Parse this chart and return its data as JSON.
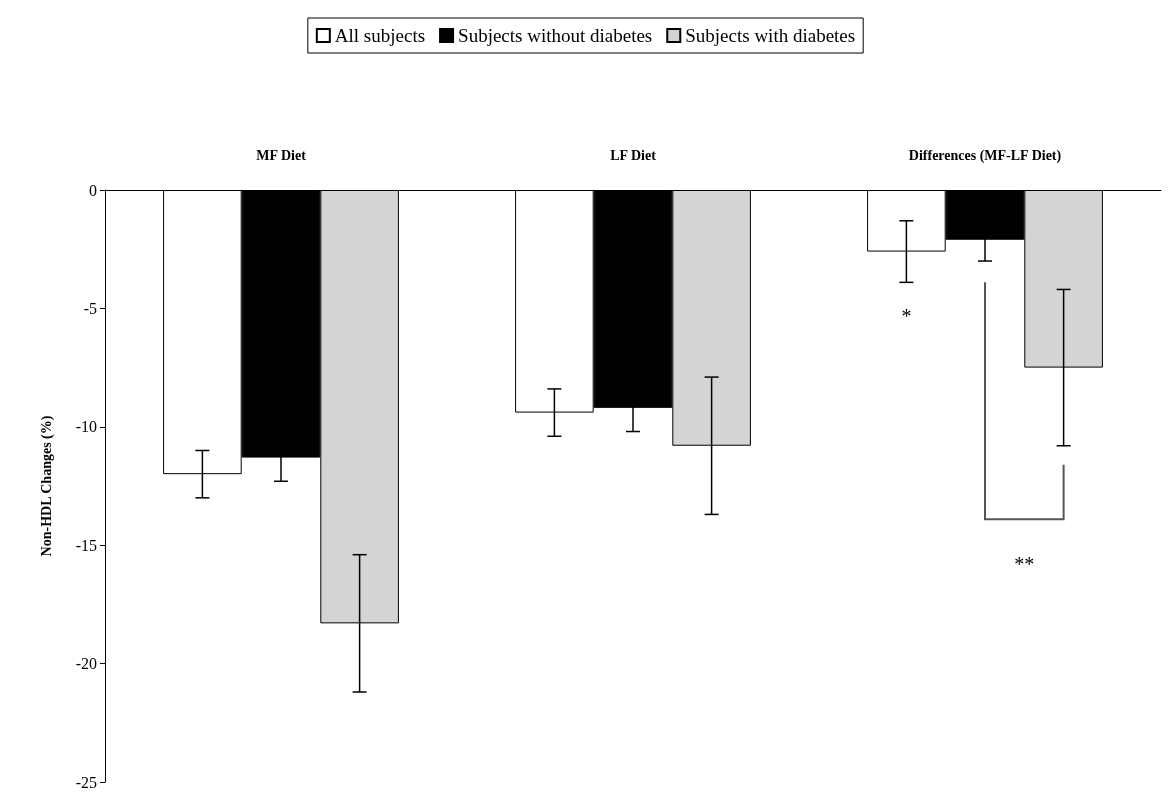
{
  "chart_data": {
    "type": "bar",
    "categories": [
      "MF Diet",
      "LF Diet",
      "Differences (MF-LF Diet)"
    ],
    "ylabel": "Non-HDL Changes (%)",
    "ylim": [
      -25,
      0
    ],
    "yticks": [
      0,
      -5,
      -10,
      -15,
      -20,
      -25
    ],
    "series": [
      {
        "name": "All subjects",
        "color": "#ffffff",
        "values": [
          -12.0,
          -9.4,
          -2.6
        ],
        "errors": [
          1.0,
          1.0,
          1.3
        ]
      },
      {
        "name": "Subjects without diabetes",
        "color": "#000000",
        "values": [
          -11.3,
          -9.2,
          -2.1
        ],
        "errors": [
          1.0,
          1.0,
          0.9
        ]
      },
      {
        "name": "Subjects with diabetes",
        "color": "#d4d4d4",
        "values": [
          -18.3,
          -10.8,
          -7.5
        ],
        "errors": [
          2.9,
          2.9,
          3.3
        ]
      }
    ],
    "annotations": [
      "*",
      "**"
    ],
    "grid": false,
    "legend": "top"
  }
}
